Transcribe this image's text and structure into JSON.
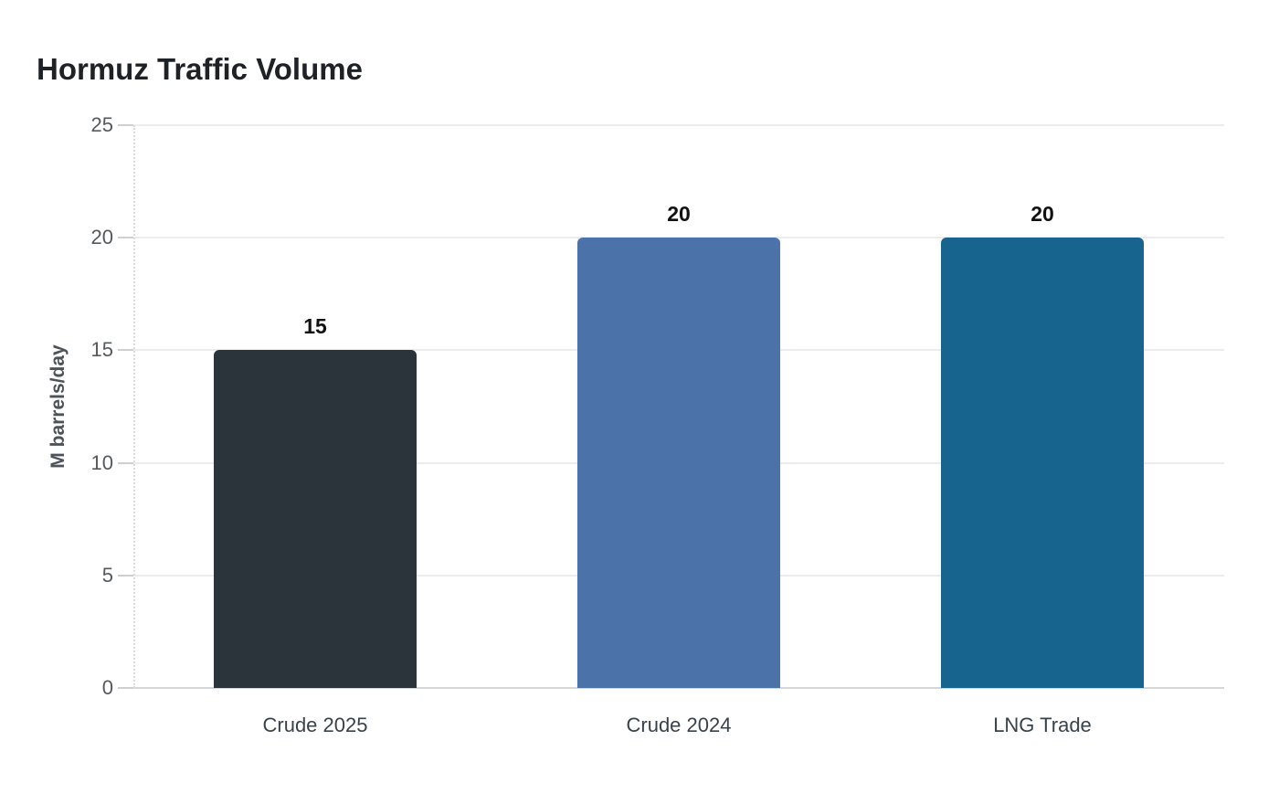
{
  "page_title": "Hormuz Traffic Volume",
  "chart_data": {
    "type": "bar",
    "title": "Hormuz Traffic Volume",
    "categories": [
      "Crude 2025",
      "Crude 2024",
      "LNG Trade"
    ],
    "values": [
      15,
      20,
      20
    ],
    "data_labels": [
      "15",
      "20",
      "20"
    ],
    "bar_colors": [
      "#2b343a",
      "#4b72a9",
      "#17648e"
    ],
    "xlabel": "",
    "ylabel": "M barrels/day",
    "ylim": [
      0,
      25
    ],
    "yticks": [
      0,
      5,
      10,
      15,
      20,
      25
    ],
    "grid": "horizontal gridlines at each y tick",
    "legend": "none"
  },
  "colors": {
    "background": "#ffffff",
    "title_text": "#1e2126",
    "tick_label_text": "#56595d",
    "x_label_text": "#39424b",
    "y_axis_title_text": "#4d5358",
    "data_label_text": "#121212",
    "gridline": "#ececec",
    "axis_line": "#d6d6d6"
  }
}
